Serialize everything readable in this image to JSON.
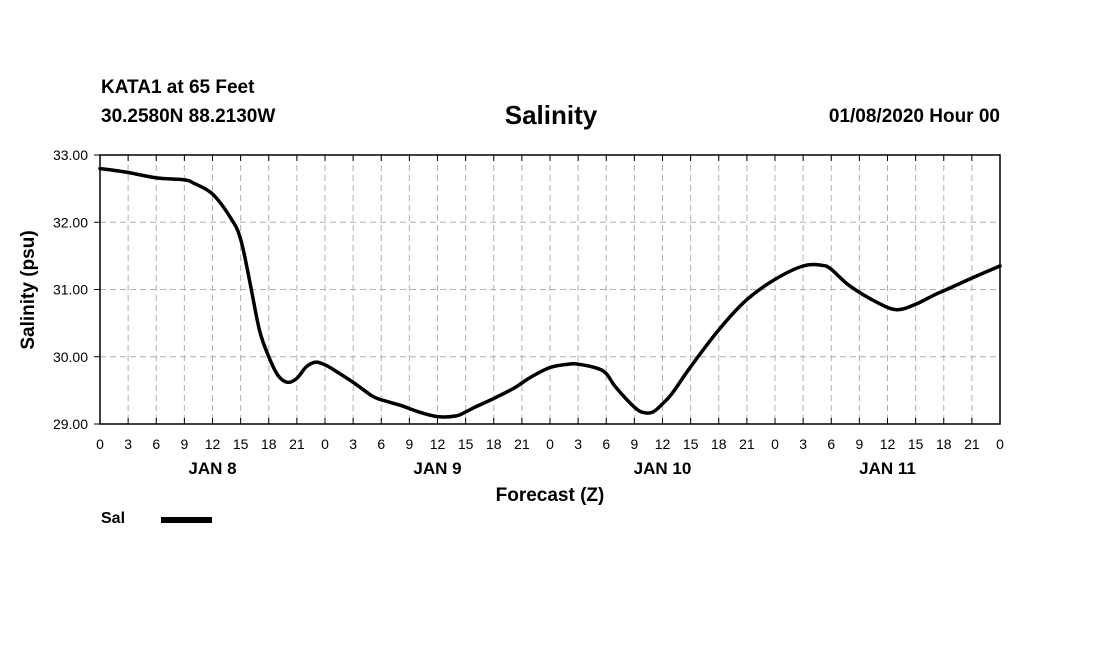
{
  "header": {
    "station": "KATA1 at 65 Feet",
    "coords": "30.2580N 88.2130W",
    "title": "Salinity",
    "runtime": "01/08/2020 Hour 00"
  },
  "chart_data": {
    "type": "line",
    "title": "Salinity",
    "xlabel": "Forecast (Z)",
    "ylabel": "Salinity (psu)",
    "ylim": [
      29.0,
      33.0
    ],
    "yticks": [
      "29.00",
      "30.00",
      "31.00",
      "32.00",
      "33.00"
    ],
    "xlim": [
      0,
      96
    ],
    "xtick_labels": [
      "0",
      "3",
      "6",
      "9",
      "12",
      "15",
      "18",
      "21",
      "0",
      "3",
      "6",
      "9",
      "12",
      "15",
      "18",
      "21",
      "0",
      "3",
      "6",
      "9",
      "12",
      "15",
      "18",
      "21",
      "0",
      "3",
      "6",
      "9",
      "12",
      "15",
      "18",
      "21",
      "0"
    ],
    "day_labels": [
      {
        "hour": 12,
        "label": "JAN 8"
      },
      {
        "hour": 36,
        "label": "JAN 9"
      },
      {
        "hour": 60,
        "label": "JAN 10"
      },
      {
        "hour": 84,
        "label": "JAN 11"
      }
    ],
    "grid": true,
    "legend_position": "bottom-left",
    "series": [
      {
        "name": "Sal",
        "color": "#000000",
        "x": [
          0,
          3,
          6,
          9,
          10,
          12,
          14,
          15,
          16,
          17,
          18,
          19,
          20,
          21,
          22,
          23,
          24,
          25,
          27,
          29,
          30,
          32,
          34,
          36,
          38,
          39,
          40,
          42,
          44,
          45,
          46,
          48,
          50,
          51,
          53,
          54,
          55,
          57,
          58,
          59,
          60,
          61,
          63,
          66,
          69,
          72,
          75,
          77,
          78,
          80,
          83,
          85,
          87,
          89,
          90,
          93,
          96
        ],
        "values": [
          32.8,
          32.74,
          32.66,
          32.63,
          32.58,
          32.42,
          32.05,
          31.75,
          31.1,
          30.4,
          30.0,
          29.72,
          29.62,
          29.68,
          29.85,
          29.92,
          29.88,
          29.8,
          29.62,
          29.42,
          29.36,
          29.28,
          29.18,
          29.11,
          29.12,
          29.18,
          29.25,
          29.38,
          29.52,
          29.61,
          29.7,
          29.84,
          29.89,
          29.89,
          29.83,
          29.75,
          29.55,
          29.25,
          29.17,
          29.18,
          29.3,
          29.45,
          29.85,
          30.4,
          30.85,
          31.15,
          31.35,
          31.36,
          31.3,
          31.05,
          30.8,
          30.7,
          30.78,
          30.92,
          30.98,
          31.17,
          31.35
        ]
      }
    ]
  }
}
